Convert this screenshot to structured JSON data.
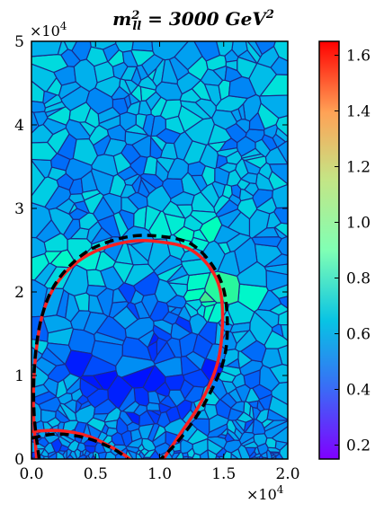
{
  "chart_data": {
    "type": "heatmap",
    "title": "m_ll^2 = 3000 GeV^2",
    "title_parts": {
      "m": "m",
      "sup": "2",
      "sub": "ll",
      "eq": " = 3000 ",
      "unit": "GeV",
      "unit_sup": "2"
    },
    "xlabel": "",
    "ylabel": "",
    "x_ticks": [
      "0.0",
      "0.5",
      "1.0",
      "1.5",
      "2.0"
    ],
    "y_ticks": [
      "0",
      "1",
      "2",
      "3",
      "4",
      "5"
    ],
    "x_multiplier": "×10",
    "x_multiplier_exp": "4",
    "y_multiplier": "×10",
    "y_multiplier_exp": "4",
    "xlim": [
      0,
      20000
    ],
    "ylim": [
      0,
      50000
    ],
    "colorbar": {
      "ticks": [
        "0.2",
        "0.4",
        "0.6",
        "0.8",
        "1.0",
        "1.2",
        "1.4",
        "1.6"
      ],
      "range": [
        0.15,
        1.65
      ],
      "colormap": "rainbow"
    },
    "contours": [
      {
        "style": "solid",
        "color": "#ff2020",
        "points": [
          [
            400,
            0
          ],
          [
            150,
            6000
          ],
          [
            300,
            12000
          ],
          [
            900,
            17500
          ],
          [
            2200,
            21500
          ],
          [
            4500,
            24500
          ],
          [
            7500,
            26000
          ],
          [
            10000,
            26000
          ],
          [
            12500,
            25000
          ],
          [
            14300,
            22000
          ],
          [
            14900,
            18000
          ],
          [
            14600,
            12000
          ],
          [
            13300,
            7000
          ],
          [
            11600,
            3000
          ],
          [
            10300,
            0
          ]
        ]
      },
      {
        "style": "solid",
        "color": "#ff2020",
        "points": [
          [
            0,
            3300
          ],
          [
            2200,
            3400
          ],
          [
            4500,
            2700
          ],
          [
            6500,
            1200
          ],
          [
            7700,
            0
          ]
        ]
      },
      {
        "style": "dashed",
        "color": "#000000",
        "points": [
          [
            600,
            0
          ],
          [
            200,
            5500
          ],
          [
            250,
            11500
          ],
          [
            800,
            17000
          ],
          [
            2000,
            21300
          ],
          [
            4300,
            24800
          ],
          [
            7200,
            26500
          ],
          [
            9800,
            26700
          ],
          [
            12500,
            25700
          ],
          [
            14400,
            22500
          ],
          [
            15200,
            18500
          ],
          [
            15100,
            12500
          ],
          [
            13700,
            7200
          ],
          [
            11800,
            2800
          ],
          [
            10100,
            0
          ]
        ]
      },
      {
        "style": "dashed",
        "color": "#000000",
        "points": [
          [
            0,
            2500
          ],
          [
            2000,
            3000
          ],
          [
            4300,
            2500
          ],
          [
            6400,
            1200
          ],
          [
            7500,
            0
          ]
        ]
      }
    ]
  }
}
